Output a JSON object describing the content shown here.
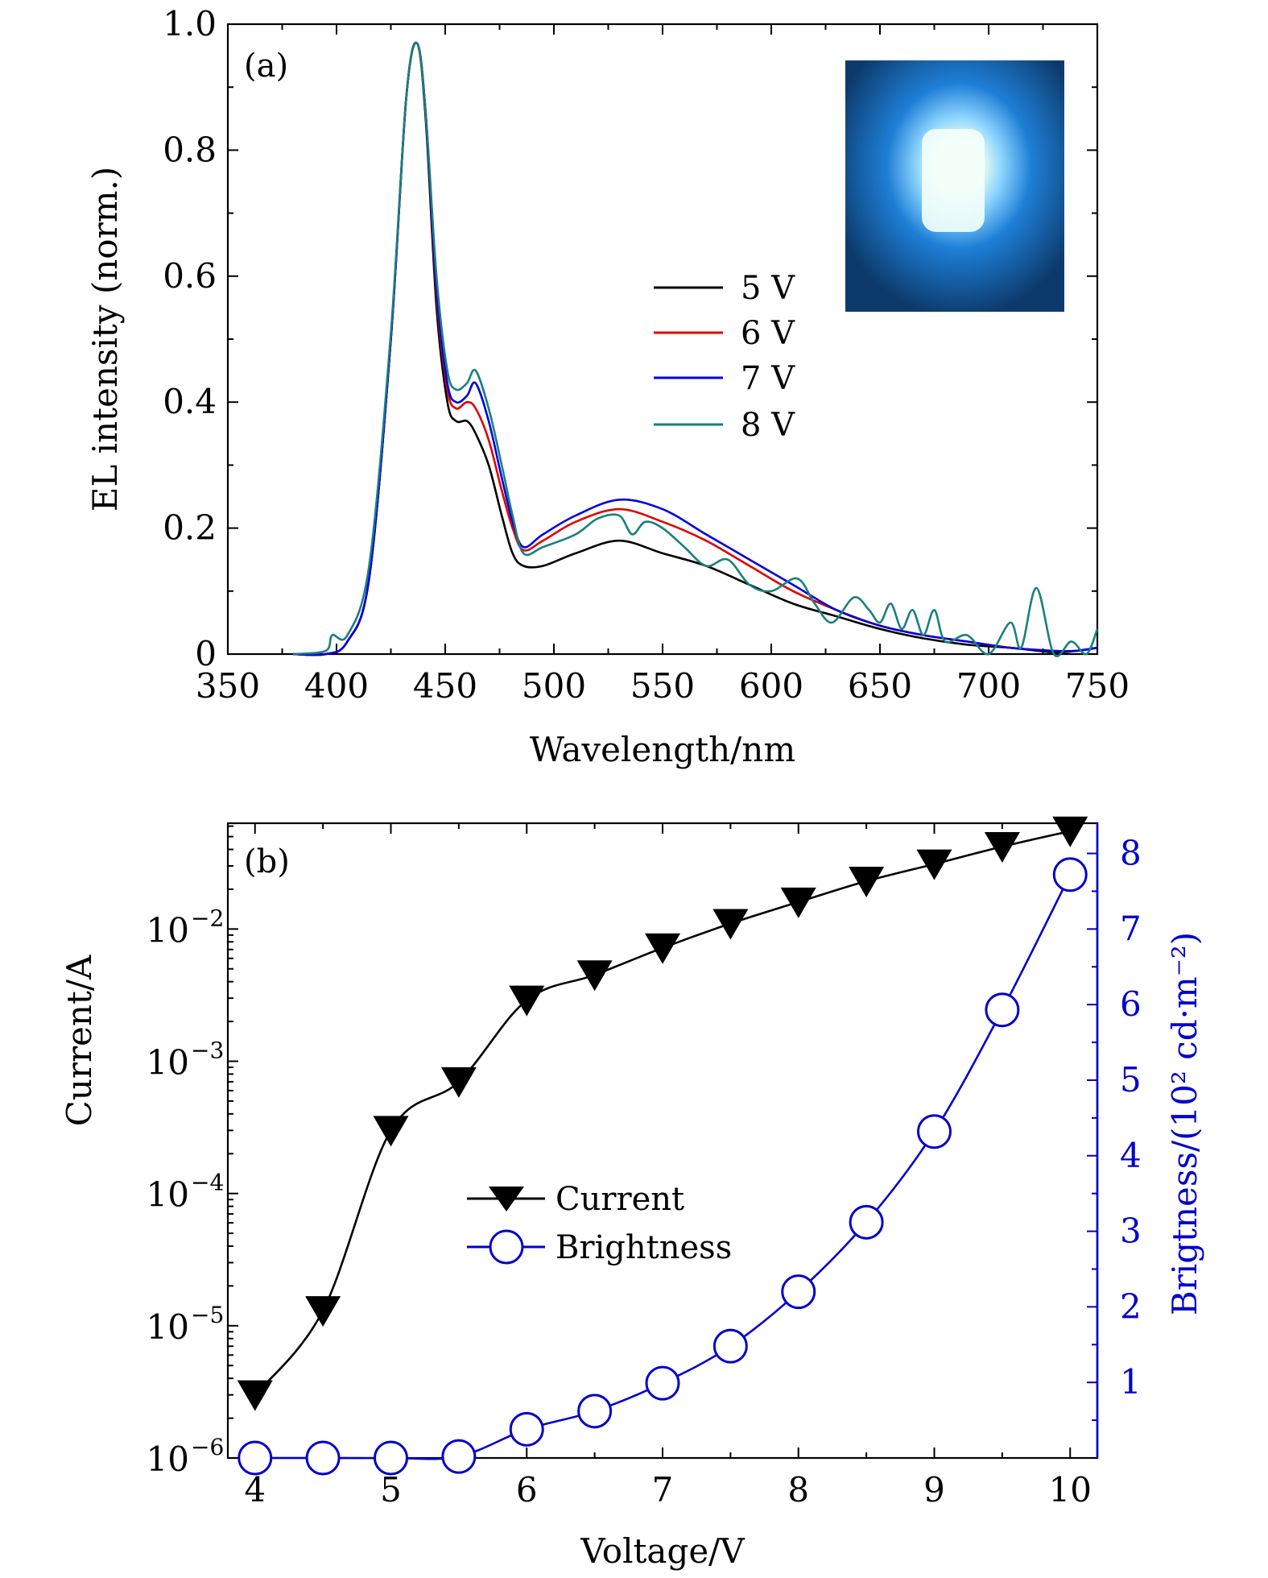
{
  "chart_data": [
    {
      "panel": "(a)",
      "type": "line",
      "xlabel": "Wavelength/nm",
      "ylabel": "EL intensity (norm.)",
      "xlim": [
        350,
        750
      ],
      "ylim": [
        0,
        1.0
      ],
      "xticks": [
        350,
        400,
        450,
        500,
        550,
        600,
        650,
        700,
        750
      ],
      "xtick_labels": [
        "350",
        "400",
        "450",
        "500",
        "550",
        "600",
        "650",
        "700",
        "750"
      ],
      "yticks": [
        0,
        0.2,
        0.4,
        0.6,
        0.8,
        1.0
      ],
      "ytick_labels": [
        "0",
        "0.2",
        "0.4",
        "0.6",
        "0.8",
        "1.0"
      ],
      "grid": false,
      "legend_position": "center-right",
      "inset": {
        "icon": "blue-emission-photo",
        "position": "top-right"
      },
      "series": [
        {
          "name": "5 V",
          "color": "#000000",
          "x": [
            380,
            395,
            405,
            415,
            425,
            432,
            437,
            441,
            446,
            451,
            455,
            460,
            464,
            470,
            476,
            481,
            486,
            495,
            510,
            530,
            550,
            570,
            590,
            610,
            630,
            650,
            670,
            690,
            710,
            730,
            740,
            750
          ],
          "y": [
            0,
            0,
            0.02,
            0.12,
            0.5,
            0.88,
            0.97,
            0.85,
            0.55,
            0.4,
            0.37,
            0.37,
            0.35,
            0.3,
            0.22,
            0.16,
            0.14,
            0.14,
            0.16,
            0.18,
            0.16,
            0.14,
            0.11,
            0.08,
            0.06,
            0.04,
            0.025,
            0.015,
            0.01,
            0.003,
            0.005,
            0.01
          ]
        },
        {
          "name": "6 V",
          "color": "#e00000",
          "x": [
            380,
            395,
            405,
            415,
            425,
            432,
            437,
            441,
            446,
            451,
            455,
            460,
            464,
            470,
            476,
            481,
            486,
            495,
            510,
            530,
            550,
            570,
            590,
            610,
            630,
            650,
            670,
            690,
            710,
            730,
            740,
            750
          ],
          "y": [
            0,
            0,
            0.02,
            0.12,
            0.5,
            0.88,
            0.97,
            0.86,
            0.57,
            0.42,
            0.39,
            0.4,
            0.39,
            0.34,
            0.26,
            0.2,
            0.165,
            0.18,
            0.21,
            0.23,
            0.21,
            0.18,
            0.14,
            0.1,
            0.07,
            0.045,
            0.03,
            0.02,
            0.01,
            0.005,
            0.005,
            0.01
          ]
        },
        {
          "name": "7 V",
          "color": "#0000e0",
          "x": [
            380,
            395,
            405,
            415,
            425,
            432,
            437,
            441,
            446,
            451,
            455,
            460,
            464,
            470,
            476,
            481,
            486,
            495,
            510,
            530,
            550,
            570,
            590,
            610,
            630,
            650,
            670,
            690,
            710,
            730,
            740,
            750
          ],
          "y": [
            0,
            0,
            0.02,
            0.12,
            0.5,
            0.88,
            0.97,
            0.86,
            0.58,
            0.43,
            0.4,
            0.41,
            0.43,
            0.37,
            0.28,
            0.21,
            0.17,
            0.19,
            0.22,
            0.245,
            0.23,
            0.19,
            0.15,
            0.11,
            0.07,
            0.045,
            0.03,
            0.02,
            0.01,
            0.005,
            0.005,
            0.01
          ]
        },
        {
          "name": "8 V",
          "color": "#1a7f7f",
          "x": [
            380,
            395,
            398,
            405,
            415,
            425,
            432,
            437,
            441,
            446,
            451,
            455,
            460,
            464,
            470,
            476,
            481,
            486,
            495,
            510,
            520,
            530,
            536,
            542,
            550,
            560,
            570,
            580,
            590,
            600,
            612,
            620,
            628,
            638,
            645,
            650,
            655,
            660,
            665,
            670,
            675,
            680,
            690,
            700,
            710,
            715,
            722,
            730,
            738,
            745,
            750
          ],
          "y": [
            0,
            0.005,
            0.03,
            0.03,
            0.14,
            0.51,
            0.88,
            0.97,
            0.86,
            0.6,
            0.45,
            0.42,
            0.43,
            0.45,
            0.39,
            0.3,
            0.22,
            0.16,
            0.17,
            0.19,
            0.215,
            0.22,
            0.19,
            0.21,
            0.2,
            0.17,
            0.14,
            0.15,
            0.11,
            0.1,
            0.12,
            0.08,
            0.05,
            0.09,
            0.07,
            0.05,
            0.08,
            0.04,
            0.07,
            0.03,
            0.07,
            0.02,
            0.03,
            0.0,
            0.05,
            0.01,
            0.105,
            0.0,
            0.02,
            0.0,
            0.04
          ]
        }
      ]
    },
    {
      "panel": "(b)",
      "type": "line",
      "xlabel": "Voltage/V",
      "ylabel": "Current/A",
      "y2label": "Brigtness/(10² cd·m⁻²)",
      "xlim": [
        3.8,
        10.2
      ],
      "ylim_log10": [
        -6,
        -1.2
      ],
      "y2lim": [
        0,
        8.4
      ],
      "y_scale": "log",
      "xticks": [
        4,
        5,
        6,
        7,
        8,
        9,
        10
      ],
      "xtick_labels": [
        "4",
        "5",
        "6",
        "7",
        "8",
        "9",
        "10"
      ],
      "yticks_exponent": [
        -6,
        -5,
        -4,
        -3,
        -2
      ],
      "ytick_labels": [
        "10",
        "10",
        "10",
        "10",
        "10"
      ],
      "ytick_exponent_labels": [
        "−6",
        "−5",
        "−4",
        "−3",
        "−2"
      ],
      "y2ticks": [
        1,
        2,
        3,
        4,
        5,
        6,
        7,
        8
      ],
      "y2tick_labels": [
        "1",
        "2",
        "3",
        "4",
        "5",
        "6",
        "7",
        "8"
      ],
      "grid": false,
      "legend_position": "center",
      "y2_color": "#0000cc",
      "series": [
        {
          "name": "Current",
          "axis": "left",
          "marker": "down-triangle",
          "color": "#000000",
          "x": [
            4,
            4.5,
            5,
            5.5,
            6,
            6.5,
            7,
            7.5,
            8,
            8.5,
            9,
            9.5,
            10
          ],
          "y": [
            3e-06,
            1.3e-05,
            0.0003,
            0.0007,
            0.0029,
            0.0045,
            0.0072,
            0.011,
            0.016,
            0.023,
            0.031,
            0.042,
            0.055
          ]
        },
        {
          "name": "Brightness",
          "axis": "right",
          "marker": "open-circle",
          "color": "#0000cc",
          "x": [
            4,
            4.5,
            5,
            5.5,
            6,
            6.5,
            7,
            7.5,
            8,
            8.5,
            9,
            9.5,
            10
          ],
          "y": [
            0.0,
            0.0,
            0.0,
            0.02,
            0.38,
            0.62,
            0.99,
            1.48,
            2.2,
            3.12,
            4.32,
            5.93,
            7.72
          ]
        }
      ]
    }
  ]
}
